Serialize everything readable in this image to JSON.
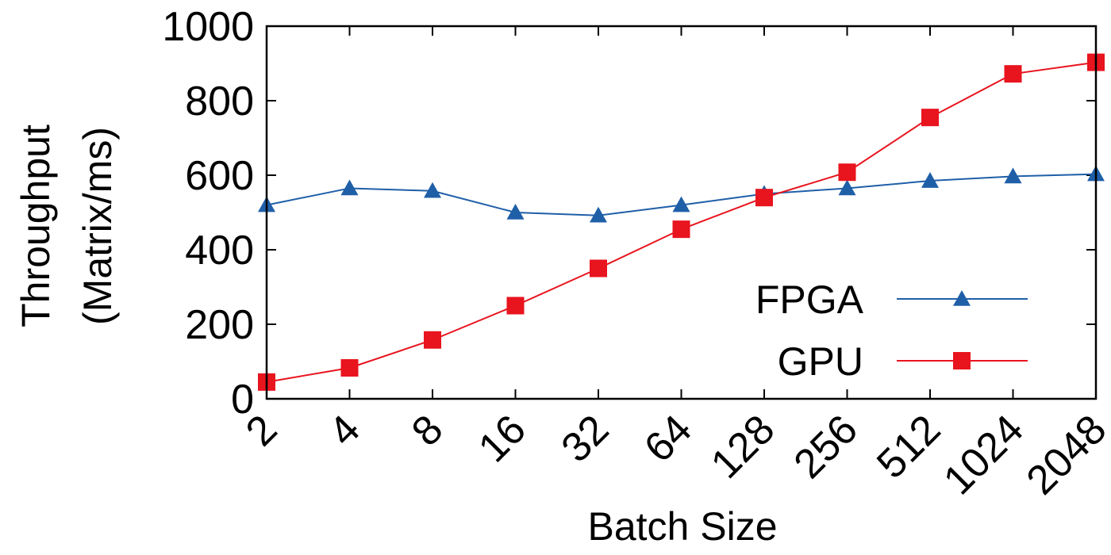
{
  "chart_data": {
    "type": "line",
    "title": "",
    "xlabel": "Batch Size",
    "ylabel": [
      "Throughput",
      "(Matrix/ms)"
    ],
    "categories": [
      "2",
      "4",
      "8",
      "16",
      "32",
      "64",
      "128",
      "256",
      "512",
      "1024",
      "2048"
    ],
    "yticks": [
      0,
      200,
      400,
      600,
      800,
      1000
    ],
    "ylim": [
      0,
      1000
    ],
    "grid": false,
    "legend_position": "bottom-right",
    "series": [
      {
        "name": "FPGA",
        "color": "#1f5fa8",
        "marker": "triangle",
        "values": [
          520,
          565,
          558,
          500,
          492,
          520,
          550,
          565,
          585,
          597,
          603
        ]
      },
      {
        "name": "GPU",
        "color": "#e8141e",
        "marker": "square",
        "values": [
          45,
          83,
          158,
          250,
          350,
          455,
          540,
          608,
          755,
          872,
          903
        ]
      }
    ]
  }
}
